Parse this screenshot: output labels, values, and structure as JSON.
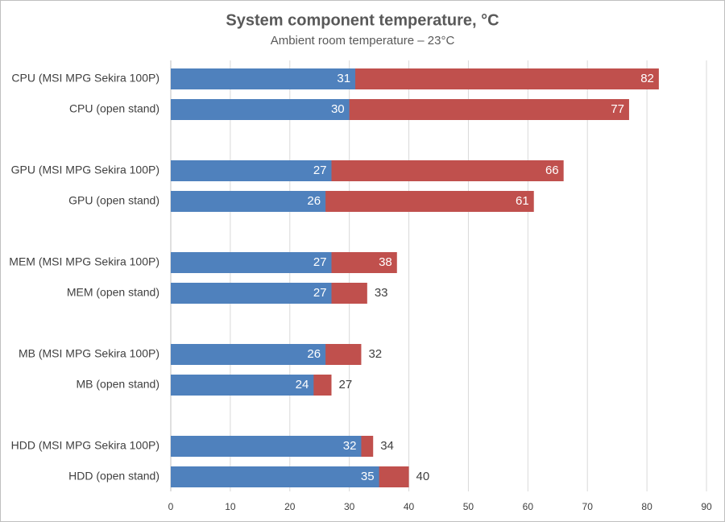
{
  "chart_data": {
    "type": "bar",
    "orientation": "horizontal",
    "title": "System component temperature, °C",
    "subtitle": "Ambient room temperature – 23°C",
    "categories": [
      "CPU (MSI MPG Sekira 100P)",
      "CPU (open stand)",
      "GPU (MSI MPG Sekira 100P)",
      "GPU (open stand)",
      "MEM (MSI MPG Sekira 100P)",
      "MEM (open stand)",
      "MB (MSI MPG Sekira 100P)",
      "MB (open stand)",
      "HDD (MSI MPG Sekira 100P)",
      "HDD (open stand)"
    ],
    "series": [
      {
        "color": "#c0504d",
        "values": [
          82,
          77,
          66,
          61,
          38,
          33,
          32,
          27,
          34,
          40
        ]
      },
      {
        "color": "#4f81bd",
        "values": [
          31,
          30,
          27,
          26,
          27,
          27,
          26,
          24,
          32,
          35
        ]
      }
    ],
    "xlim": [
      0,
      90
    ],
    "xticks": [
      0,
      10,
      20,
      30,
      40,
      50,
      60,
      70,
      80,
      90
    ],
    "grid": true
  }
}
